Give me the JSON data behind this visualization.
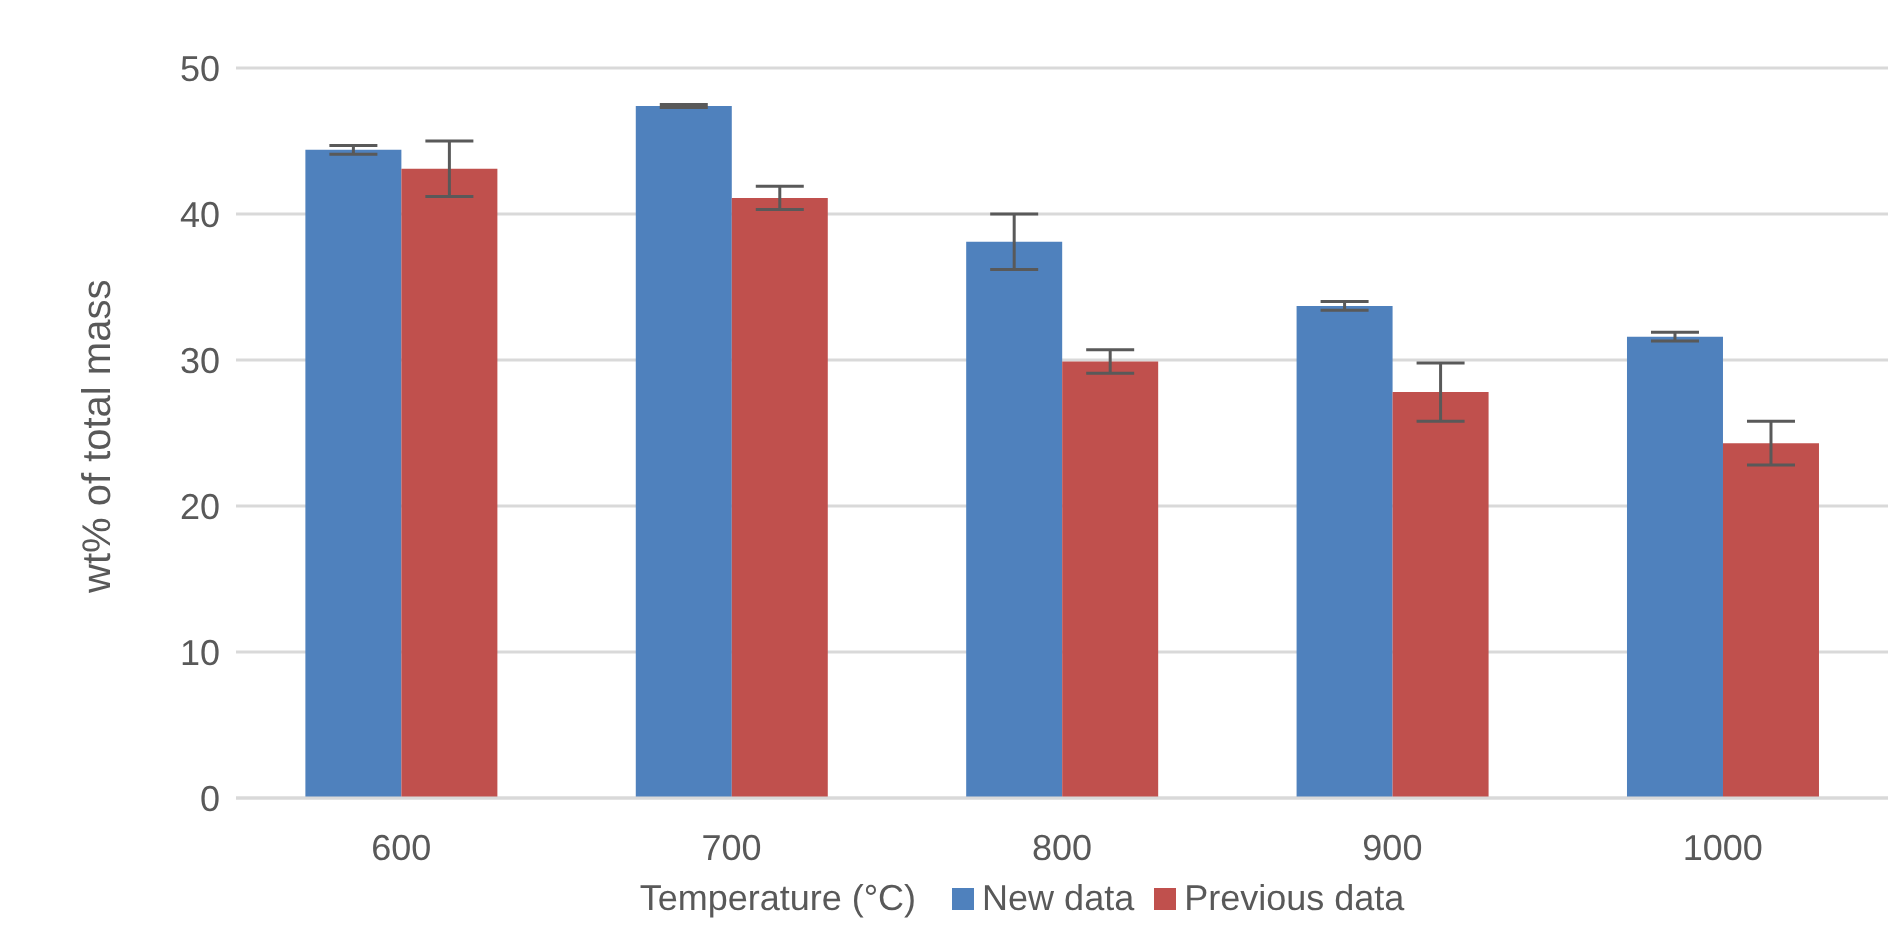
{
  "chart_data": {
    "type": "bar",
    "xlabel": "Temperature (°C)",
    "ylabel": "wt% of total mass",
    "categories": [
      "600",
      "700",
      "800",
      "900",
      "1000"
    ],
    "series": [
      {
        "name": "New data",
        "color": "#4f81bd",
        "values": [
          44.4,
          47.4,
          38.1,
          33.7,
          31.6
        ],
        "errors": [
          0.3,
          0.1,
          1.9,
          0.3,
          0.3
        ]
      },
      {
        "name": "Previous data",
        "color": "#c0504d",
        "values": [
          43.1,
          41.1,
          29.9,
          27.8,
          24.3
        ],
        "errors": [
          1.9,
          0.8,
          0.8,
          2.0,
          1.5
        ]
      }
    ],
    "ylim": [
      0,
      50
    ],
    "yticks": [
      0,
      10,
      20,
      30,
      40,
      50
    ],
    "grid": "y",
    "legend": "bottom"
  }
}
